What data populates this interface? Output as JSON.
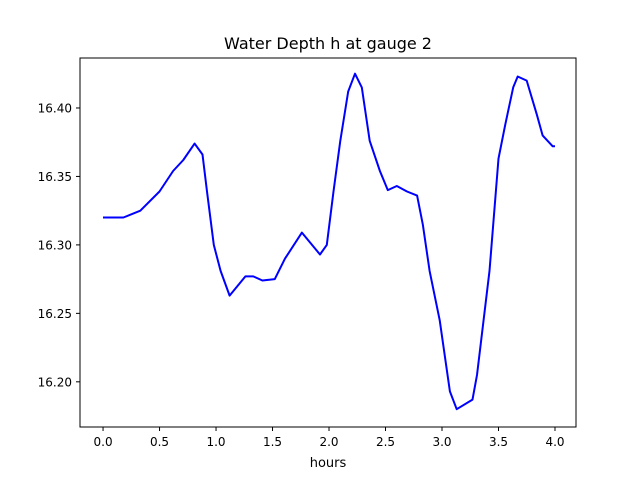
{
  "chart_data": {
    "type": "line",
    "title": "Water Depth h at gauge 2",
    "xlabel": "hours",
    "ylabel": "",
    "xlim": [
      -0.204,
      4.186
    ],
    "ylim": [
      16.167,
      16.4365
    ],
    "xticks": [
      0.0,
      0.5,
      1.0,
      1.5,
      2.0,
      2.5,
      3.0,
      3.5,
      4.0
    ],
    "xtick_labels": [
      "0.0",
      "0.5",
      "1.0",
      "1.5",
      "2.0",
      "2.5",
      "3.0",
      "3.5",
      "4.0"
    ],
    "yticks": [
      16.2,
      16.25,
      16.3,
      16.35,
      16.4
    ],
    "ytick_labels": [
      "16.20",
      "16.25",
      "16.30",
      "16.35",
      "16.40"
    ],
    "grid": false,
    "series": [
      {
        "name": "h",
        "color": "#0000ff",
        "x": [
          0.0,
          0.18,
          0.33,
          0.5,
          0.62,
          0.71,
          0.81,
          0.88,
          0.92,
          0.98,
          1.04,
          1.12,
          1.26,
          1.33,
          1.41,
          1.52,
          1.61,
          1.76,
          1.92,
          1.98,
          2.04,
          2.1,
          2.17,
          2.23,
          2.29,
          2.36,
          2.45,
          2.52,
          2.6,
          2.69,
          2.78,
          2.83,
          2.89,
          2.98,
          3.07,
          3.13,
          3.27,
          3.31,
          3.42,
          3.5,
          3.56,
          3.63,
          3.67,
          3.75,
          3.84,
          3.89,
          3.98,
          4.0
        ],
        "y": [
          16.32,
          16.32,
          16.325,
          16.339,
          16.354,
          16.362,
          16.374,
          16.366,
          16.339,
          16.3,
          16.281,
          16.263,
          16.277,
          16.277,
          16.274,
          16.275,
          16.29,
          16.309,
          16.293,
          16.3,
          16.339,
          16.376,
          16.412,
          16.425,
          16.415,
          16.376,
          16.354,
          16.34,
          16.343,
          16.339,
          16.336,
          16.315,
          16.281,
          16.245,
          16.193,
          16.18,
          16.187,
          16.205,
          16.281,
          16.363,
          16.388,
          16.415,
          16.423,
          16.42,
          16.395,
          16.38,
          16.372,
          16.372
        ]
      }
    ]
  }
}
